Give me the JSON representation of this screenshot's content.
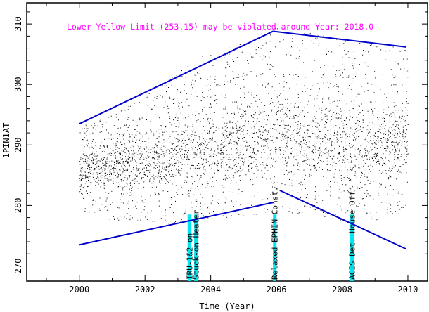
{
  "chart_data": {
    "type": "scatter",
    "title": "",
    "annotation": "Lower Yellow  Limit (253.15) may be violated around Year: 2018.0",
    "xlabel": "Time (Year)",
    "ylabel": "1PIN1AT",
    "xlim": [
      1998.4,
      2010.6
    ],
    "ylim": [
      267.5,
      313.5
    ],
    "x_ticks": [
      2000,
      2002,
      2004,
      2006,
      2008,
      2010
    ],
    "y_ticks": [
      270,
      280,
      290,
      300,
      310
    ],
    "grid": false,
    "colors": {
      "points": "#000000",
      "trend": "#0000cc",
      "event": "#00e5ee",
      "annotation": "#ff00ff"
    },
    "data_envelope": {
      "x": [
        2000.0,
        2000.5,
        2001.0,
        2001.5,
        2002.0,
        2002.5,
        2003.0,
        2003.5,
        2004.0,
        2004.5,
        2005.0,
        2005.5,
        2006.0,
        2006.5,
        2007.0,
        2007.5,
        2008.0,
        2008.5,
        2009.0,
        2009.5,
        2010.0
      ],
      "median": [
        286.0,
        286.5,
        287.0,
        286.5,
        287.0,
        287.5,
        288.5,
        289.0,
        289.5,
        290.0,
        290.5,
        291.0,
        291.5,
        291.0,
        290.5,
        290.0,
        289.5,
        289.5,
        290.0,
        290.5,
        290.5
      ],
      "low": [
        279.0,
        278.5,
        277.5,
        277.5,
        277.0,
        277.0,
        277.0,
        277.5,
        277.5,
        278.0,
        278.0,
        278.5,
        278.5,
        278.0,
        278.0,
        277.5,
        277.5,
        277.5,
        277.5,
        278.0,
        278.0
      ],
      "high": [
        293.0,
        294.0,
        295.0,
        296.5,
        298.0,
        300.0,
        302.0,
        304.0,
        305.5,
        306.5,
        307.5,
        308.5,
        309.5,
        309.0,
        308.5,
        308.0,
        307.5,
        307.5,
        307.0,
        306.5,
        306.0
      ]
    },
    "trend_lines": [
      {
        "name": "upper-limit-trend-1",
        "x": [
          2000.0,
          2005.9
        ],
        "y": [
          293.5,
          308.8
        ]
      },
      {
        "name": "upper-limit-trend-2",
        "x": [
          2005.9,
          2009.95
        ],
        "y": [
          308.8,
          306.2
        ]
      },
      {
        "name": "lower-limit-trend-1",
        "x": [
          2000.0,
          2005.9
        ],
        "y": [
          273.5,
          280.5
        ]
      },
      {
        "name": "lower-limit-trend-2",
        "x": [
          2006.1,
          2009.95
        ],
        "y": [
          282.5,
          272.8
        ]
      }
    ],
    "events": [
      {
        "label": "IRU-1&2 on",
        "x": 2003.35
      },
      {
        "label": "Stuck-on Heater",
        "x": 2003.55
      },
      {
        "label": "Relaxed EPHIN Const.",
        "x": 2005.95
      },
      {
        "label": "ACIS Det. House Off",
        "x": 2008.3
      }
    ]
  }
}
